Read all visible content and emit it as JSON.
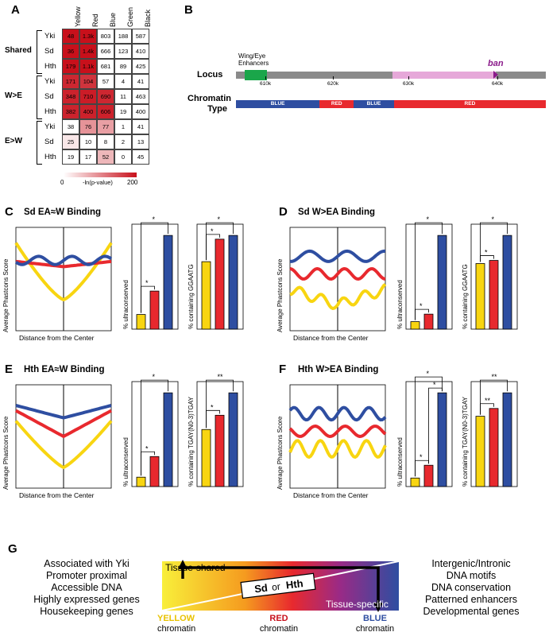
{
  "panel_labels": {
    "A": "A",
    "B": "B",
    "C": "C",
    "D": "D",
    "E": "E",
    "F": "F",
    "G": "G"
  },
  "panel_a": {
    "columns": [
      "Yellow",
      "Red",
      "Blue",
      "Green",
      "Black"
    ],
    "groups": [
      {
        "name": "Shared",
        "rows": [
          {
            "label": "Yki",
            "values": [
              "48",
              "1.3k",
              "803",
              "188",
              "587"
            ]
          },
          {
            "label": "Sd",
            "values": [
              "36",
              "1.4k",
              "666",
              "123",
              "410"
            ]
          },
          {
            "label": "Hth",
            "values": [
              "179",
              "1.1k",
              "681",
              "89",
              "425"
            ]
          }
        ]
      },
      {
        "name": "W>E",
        "rows": [
          {
            "label": "Yki",
            "values": [
              "171",
              "104",
              "57",
              "4",
              "41"
            ]
          },
          {
            "label": "Sd",
            "values": [
              "348",
              "710",
              "690",
              "11",
              "463"
            ]
          },
          {
            "label": "Hth",
            "values": [
              "382",
              "400",
              "606",
              "19",
              "400"
            ]
          }
        ]
      },
      {
        "name": "E>W",
        "rows": [
          {
            "label": "Yki",
            "values": [
              "38",
              "76",
              "77",
              "1",
              "41"
            ]
          },
          {
            "label": "Sd",
            "values": [
              "25",
              "10",
              "8",
              "2",
              "13"
            ]
          },
          {
            "label": "Hth",
            "values": [
              "19",
              "17",
              "52",
              "0",
              "45"
            ]
          }
        ]
      }
    ],
    "intensity": [
      [
        1,
        1,
        0,
        0,
        0
      ],
      [
        1,
        1,
        0,
        0,
        0
      ],
      [
        1,
        1,
        0,
        0,
        0
      ],
      [
        0.9,
        0.85,
        0,
        0,
        0
      ],
      [
        0.92,
        0.95,
        0.9,
        0,
        0
      ],
      [
        0.92,
        0.93,
        0.93,
        0,
        0
      ],
      [
        0,
        0.45,
        0.4,
        0,
        0
      ],
      [
        0.1,
        0,
        0,
        0,
        0
      ],
      [
        0,
        0,
        0.3,
        0,
        0
      ]
    ],
    "legend_min": "0",
    "legend_max": "200",
    "legend_label": "-ln(p-value)"
  },
  "panel_b": {
    "locus_label": "Locus",
    "chromatin_label_line1": "Chromatin",
    "chromatin_label_line2": "Type",
    "enhancer_label_line1": "Wing/Eye",
    "enhancer_label_line2": "Enhancers",
    "gene_label": "ban",
    "ticks": [
      "610k",
      "620k",
      "630k",
      "640k"
    ],
    "segments": [
      {
        "label": "BLUE",
        "color": "#2e4ea1",
        "frac": 0.27
      },
      {
        "label": "RED",
        "color": "#e8292e",
        "frac": 0.11
      },
      {
        "label": "BLUE",
        "color": "#2e4ea1",
        "frac": 0.13
      },
      {
        "label": "RED",
        "color": "#e8292e",
        "frac": 0.49
      }
    ]
  },
  "panels_cf": [
    {
      "id": "C",
      "title": "Sd EA≈W Binding",
      "ylabel": "Average Phastcons Score",
      "xlabel": "Distance from the Center",
      "bar1_ylabel": "% ultraconserved",
      "bar2_ylabel": "% containing GGAATG"
    },
    {
      "id": "D",
      "title": "Sd W>EA Binding",
      "ylabel": "Average Phastcons Score",
      "xlabel": "Distance from the Center",
      "bar1_ylabel": "% ultraconserved",
      "bar2_ylabel": "% containing GGAATG"
    },
    {
      "id": "E",
      "title": "Hth EA≈W Binding",
      "ylabel": "Average Phastcons Score",
      "xlabel": "Distance from the Center",
      "bar1_ylabel": "% ultraconserved",
      "bar2_ylabel": "% containing TGAY(N0-3)TGAY"
    },
    {
      "id": "F",
      "title": "Hth W>EA Binding",
      "ylabel": "Average Phastcons Score",
      "xlabel": "Distance from the Center",
      "bar1_ylabel": "% ultraconserved",
      "bar2_ylabel": "% containing TGAY(N0-3)TGAY"
    }
  ],
  "chart_data": [
    {
      "panel": "C",
      "type": "bar",
      "categories": [
        "Yellow",
        "Red",
        "Blue"
      ],
      "values": [
        2.5,
        6.5,
        16
      ],
      "ylim": [
        0,
        16
      ],
      "sig": [
        "*",
        "*"
      ]
    },
    {
      "panel": "C",
      "type": "bar",
      "categories": [
        "Yellow",
        "Red",
        "Blue"
      ],
      "values": [
        18,
        24,
        25
      ],
      "ylim": [
        0,
        25
      ],
      "sig": [
        "*",
        "*"
      ]
    },
    {
      "panel": "D",
      "type": "bar",
      "categories": [
        "Yellow",
        "Red",
        "Blue"
      ],
      "values": [
        0.02,
        0.04,
        0.25
      ],
      "ylim": [
        0,
        0.25
      ],
      "sig": [
        "*",
        "*"
      ]
    },
    {
      "panel": "D",
      "type": "bar",
      "categories": [
        "Yellow",
        "Red",
        "Blue"
      ],
      "values": [
        0.21,
        0.22,
        0.3
      ],
      "ylim": [
        0,
        0.3
      ],
      "sig": [
        "*",
        "*"
      ]
    },
    {
      "panel": "E",
      "type": "bar",
      "categories": [
        "Yellow",
        "Red",
        "Blue"
      ],
      "values": [
        2.5,
        8,
        25
      ],
      "ylim": [
        0,
        25
      ],
      "sig": [
        "*",
        "*"
      ]
    },
    {
      "panel": "E",
      "type": "bar",
      "categories": [
        "Yellow",
        "Red",
        "Blue"
      ],
      "values": [
        14,
        17.5,
        23
      ],
      "ylim": [
        0,
        23
      ],
      "sig": [
        "*",
        "**"
      ]
    },
    {
      "panel": "F",
      "type": "bar",
      "categories": [
        "Yellow",
        "Red",
        "Blue"
      ],
      "values": [
        0.02,
        0.05,
        0.22
      ],
      "ylim": [
        0,
        0.22
      ],
      "sig": [
        "*",
        "*",
        "*"
      ]
    },
    {
      "panel": "F",
      "type": "bar",
      "categories": [
        "Yellow",
        "Red",
        "Blue"
      ],
      "values": [
        0.18,
        0.2,
        0.24
      ],
      "ylim": [
        0,
        0.24
      ],
      "sig": [
        "**",
        "**"
      ]
    }
  ],
  "colors": {
    "yellow": "#f8d511",
    "red": "#e8292e",
    "blue": "#2e4ea1",
    "heat": "#c8101b"
  },
  "panel_g": {
    "left_lines": [
      "Associated with Yki",
      "Promoter proximal",
      "Accessible DNA",
      "Highly expressed genes",
      "Housekeeping genes"
    ],
    "right_lines": [
      "Intergenic/Intronic",
      "DNA motifs",
      "DNA conservation",
      "Patterned enhancers",
      "Developmental genes"
    ],
    "tissue_shared": "Tissue-shared",
    "tissue_specific": "Tissue-specific",
    "sd": "Sd",
    "or": "or",
    "hth": "Hth",
    "yellow_label": "YELLOW",
    "red_label": "RED",
    "blue_label": "BLUE",
    "chromatin_word": "chromatin"
  }
}
